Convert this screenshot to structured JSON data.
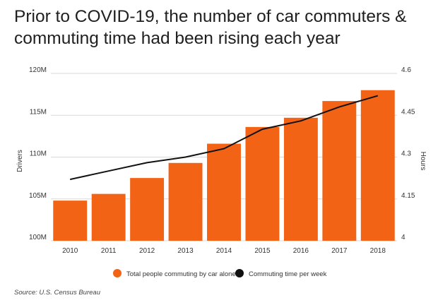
{
  "title": "Prior to COVID-19, the number of car commuters & commuting time had been rising each year",
  "source": "Source: U.S. Census Bureau",
  "colors": {
    "bar": "#f26316",
    "line": "#111111",
    "grid": "#d9d9d9"
  },
  "chart_data": {
    "type": "bar",
    "categories": [
      "2010",
      "2011",
      "2012",
      "2013",
      "2014",
      "2015",
      "2016",
      "2017",
      "2018"
    ],
    "series": [
      {
        "name": "Total people commuting by car alone",
        "type": "bar",
        "axis": "left",
        "values": [
          104.8,
          105.6,
          107.5,
          109.3,
          111.6,
          113.6,
          114.7,
          116.7,
          118.0
        ]
      },
      {
        "name": "Commuting time per week",
        "type": "line",
        "axis": "right",
        "values": [
          4.22,
          4.25,
          4.28,
          4.3,
          4.33,
          4.4,
          4.43,
          4.48,
          4.52
        ]
      }
    ],
    "ylabel": "Drivers",
    "y2label": "Hours",
    "ylim": [
      100,
      120
    ],
    "y2lim": [
      4,
      4.6
    ],
    "yticks": [
      "100M",
      "105M",
      "110M",
      "115M",
      "120M"
    ],
    "y2ticks": [
      "4",
      "4.15",
      "4.3",
      "4.45",
      "4.6"
    ],
    "grid": true,
    "legend_position": "bottom"
  }
}
